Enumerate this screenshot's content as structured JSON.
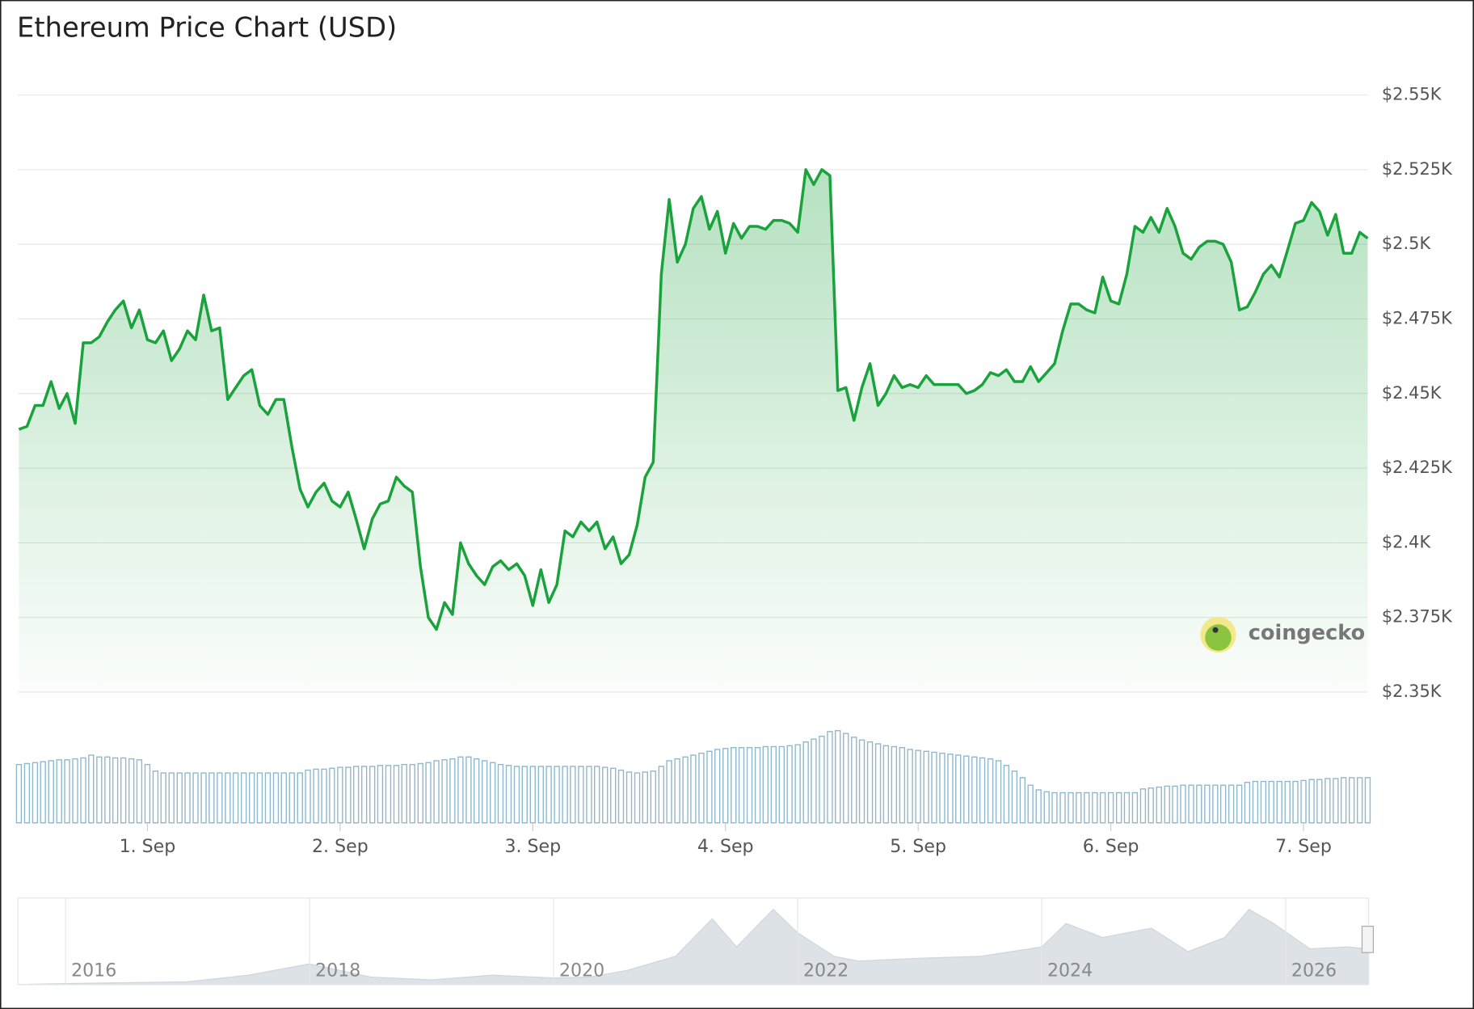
{
  "chart_data": [
    {
      "type": "area",
      "title": "Ethereum Price Chart (USD)",
      "watermark": "coingecko",
      "color": "#1aa23c",
      "volume_color": "#8fb8cf",
      "grid": true,
      "xlim": [
        0.333,
        7.333
      ],
      "xticks": [
        {
          "value": 1,
          "label": "1. Sep"
        },
        {
          "value": 2,
          "label": "2. Sep"
        },
        {
          "value": 3,
          "label": "3. Sep"
        },
        {
          "value": 4,
          "label": "4. Sep"
        },
        {
          "value": 5,
          "label": "5. Sep"
        },
        {
          "value": 6,
          "label": "6. Sep"
        },
        {
          "value": 7,
          "label": "7. Sep"
        }
      ],
      "ylim": [
        2350,
        2550
      ],
      "yticks": [
        {
          "value": 2350,
          "label": "$2.35K"
        },
        {
          "value": 2375,
          "label": "$2.375K"
        },
        {
          "value": 2400,
          "label": "$2.4K"
        },
        {
          "value": 2425,
          "label": "$2.425K"
        },
        {
          "value": 2450,
          "label": "$2.45K"
        },
        {
          "value": 2475,
          "label": "$2.475K"
        },
        {
          "value": 2500,
          "label": "$2.5K"
        },
        {
          "value": 2525,
          "label": "$2.525K"
        },
        {
          "value": 2550,
          "label": "$2.55K"
        }
      ],
      "x": [
        0.333,
        0.375,
        0.417,
        0.458,
        0.5,
        0.542,
        0.583,
        0.625,
        0.667,
        0.708,
        0.75,
        0.792,
        0.833,
        0.875,
        0.917,
        0.958,
        1,
        1.042,
        1.083,
        1.125,
        1.167,
        1.208,
        1.25,
        1.292,
        1.333,
        1.375,
        1.417,
        1.458,
        1.5,
        1.542,
        1.583,
        1.625,
        1.667,
        1.708,
        1.75,
        1.792,
        1.833,
        1.875,
        1.917,
        1.958,
        2,
        2.042,
        2.083,
        2.125,
        2.167,
        2.208,
        2.25,
        2.292,
        2.333,
        2.375,
        2.417,
        2.458,
        2.5,
        2.542,
        2.583,
        2.625,
        2.667,
        2.708,
        2.75,
        2.792,
        2.833,
        2.875,
        2.917,
        2.958,
        3,
        3.042,
        3.083,
        3.125,
        3.167,
        3.208,
        3.25,
        3.292,
        3.333,
        3.375,
        3.417,
        3.458,
        3.5,
        3.542,
        3.583,
        3.625,
        3.667,
        3.708,
        3.75,
        3.792,
        3.833,
        3.875,
        3.917,
        3.958,
        4,
        4.042,
        4.083,
        4.125,
        4.167,
        4.208,
        4.25,
        4.292,
        4.333,
        4.375,
        4.417,
        4.458,
        4.5,
        4.542,
        4.583,
        4.625,
        4.667,
        4.708,
        4.75,
        4.792,
        4.833,
        4.875,
        4.917,
        4.958,
        5,
        5.042,
        5.083,
        5.125,
        5.167,
        5.208,
        5.25,
        5.292,
        5.333,
        5.375,
        5.417,
        5.458,
        5.5,
        5.542,
        5.583,
        5.625,
        5.667,
        5.708,
        5.75,
        5.792,
        5.833,
        5.875,
        5.917,
        5.958,
        6,
        6.042,
        6.083,
        6.125,
        6.167,
        6.208,
        6.25,
        6.292,
        6.333,
        6.375,
        6.417,
        6.458,
        6.5,
        6.542,
        6.583,
        6.625,
        6.667,
        6.708,
        6.75,
        6.792,
        6.833,
        6.875,
        6.917,
        6.958,
        7,
        7.042,
        7.083,
        7.125,
        7.167,
        7.208,
        7.25,
        7.292,
        7.333
      ],
      "values": [
        2438,
        2439,
        2446,
        2446,
        2454,
        2445,
        2450,
        2440,
        2467,
        2467,
        2469,
        2474,
        2478,
        2481,
        2472,
        2478,
        2468,
        2467,
        2471,
        2461,
        2465,
        2471,
        2468,
        2483,
        2471,
        2472,
        2448,
        2452,
        2456,
        2458,
        2446,
        2443,
        2448,
        2448,
        2432,
        2418,
        2412,
        2417,
        2420,
        2414,
        2412,
        2417,
        2408,
        2398,
        2408,
        2413,
        2414,
        2422,
        2419,
        2417,
        2392,
        2375,
        2371,
        2380,
        2376,
        2400,
        2393,
        2389,
        2386,
        2392,
        2394,
        2391,
        2393,
        2389,
        2379,
        2391,
        2380,
        2386,
        2404,
        2402,
        2407,
        2404,
        2407,
        2398,
        2402,
        2393,
        2396,
        2406,
        2422,
        2427,
        2490,
        2515,
        2494,
        2500,
        2512,
        2516,
        2505,
        2511,
        2497,
        2507,
        2502,
        2506,
        2506,
        2505,
        2508,
        2508,
        2507,
        2504,
        2525,
        2520,
        2525,
        2523,
        2451,
        2452,
        2441,
        2452,
        2460,
        2446,
        2450,
        2456,
        2452,
        2453,
        2452,
        2456,
        2453,
        2453,
        2453,
        2453,
        2450,
        2451,
        2453,
        2457,
        2456,
        2458,
        2454,
        2454,
        2459,
        2454,
        2457,
        2460,
        2471,
        2480,
        2480,
        2478,
        2477,
        2489,
        2481,
        2480,
        2490,
        2506,
        2504,
        2509,
        2504,
        2512,
        2506,
        2497,
        2495,
        2499,
        2501,
        2501,
        2500,
        2494,
        2478,
        2479,
        2484,
        2490,
        2493,
        2489,
        2498,
        2507,
        2508,
        2514,
        2511,
        2503,
        2510,
        2497,
        2497,
        2504,
        2502
      ],
      "volume": [
        62,
        63,
        64,
        65,
        66,
        67,
        67,
        68,
        69,
        72,
        70,
        70,
        69,
        69,
        68,
        67,
        62,
        55,
        53,
        53,
        53,
        53,
        53,
        53,
        53,
        53,
        53,
        53,
        53,
        53,
        53,
        53,
        53,
        53,
        53,
        53,
        56,
        57,
        57,
        58,
        59,
        59,
        60,
        60,
        60,
        61,
        61,
        61,
        62,
        62,
        63,
        64,
        66,
        67,
        68,
        70,
        70,
        68,
        66,
        64,
        62,
        61,
        60,
        60,
        60,
        60,
        60,
        60,
        60,
        60,
        60,
        60,
        60,
        59,
        58,
        56,
        54,
        53,
        54,
        55,
        60,
        66,
        68,
        70,
        72,
        74,
        76,
        78,
        79,
        80,
        80,
        80,
        80,
        81,
        81,
        81,
        82,
        83,
        86,
        89,
        92,
        97,
        98,
        95,
        91,
        88,
        86,
        84,
        82,
        81,
        80,
        78,
        77,
        76,
        75,
        74,
        73,
        72,
        71,
        70,
        69,
        68,
        66,
        61,
        55,
        48,
        40,
        35,
        33,
        32,
        32,
        32,
        32,
        32,
        32,
        32,
        32,
        32,
        32,
        32,
        36,
        37,
        38,
        39,
        39,
        40,
        40,
        40,
        40,
        40,
        40,
        40,
        40,
        43,
        44,
        44,
        44,
        44,
        44,
        44,
        45,
        46,
        46,
        47,
        47,
        48,
        48,
        48,
        48
      ]
    },
    {
      "type": "navigator",
      "color": "#dde2e7",
      "xlim": [
        2015.61,
        2026.68
      ],
      "xticks": [
        2016,
        2018,
        2020,
        2022,
        2024,
        2026
      ],
      "x": [
        2015.61,
        2016,
        2016.5,
        2017,
        2017.5,
        2018,
        2018.5,
        2019,
        2019.5,
        2020,
        2020.3,
        2020.6,
        2021,
        2021.3,
        2021.5,
        2021.8,
        2022,
        2022.3,
        2022.5,
        2023,
        2023.5,
        2024,
        2024.2,
        2024.5,
        2024.9,
        2025.2,
        2025.5,
        2025.7,
        2025.9,
        2026.2,
        2026.5,
        2026.68
      ],
      "values": [
        0,
        1,
        2,
        3,
        10,
        22,
        8,
        5,
        10,
        7,
        8,
        15,
        30,
        70,
        40,
        80,
        55,
        30,
        25,
        28,
        30,
        40,
        65,
        50,
        60,
        35,
        50,
        80,
        65,
        38,
        40,
        38
      ]
    }
  ]
}
